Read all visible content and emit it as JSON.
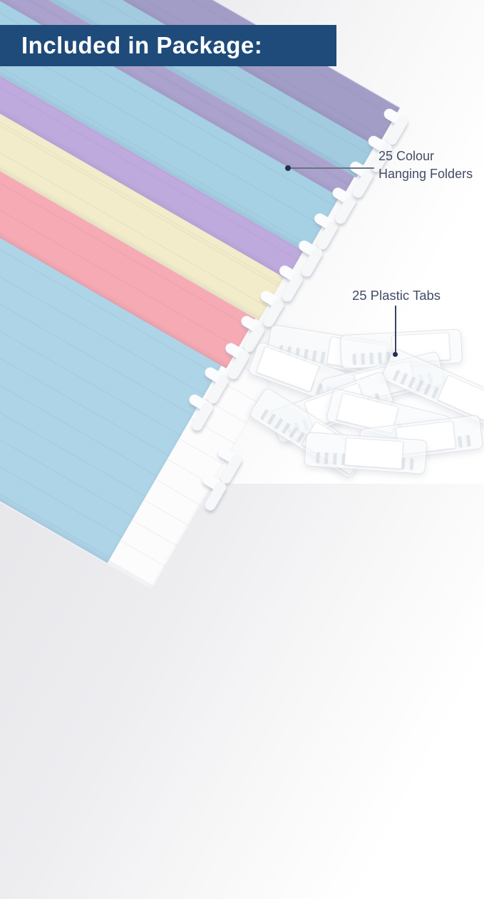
{
  "banner": {
    "title": "Included in Package:",
    "bg_color": "#1e4b79",
    "text_color": "#ffffff"
  },
  "callouts": {
    "folders": {
      "line1": "25 Colour",
      "line2": "Hanging Folders"
    },
    "tabs": {
      "label": "25 Plastic Tabs"
    },
    "label_color": "#414c64",
    "line_color": "#6a7386",
    "dot_color": "#232f4e"
  },
  "folders": {
    "stripe_colors": [
      {
        "name": "dusty-periwinkle",
        "hex": "#a29dc6"
      },
      {
        "name": "sky-blue",
        "hex": "#a2cbe0"
      },
      {
        "name": "gray-lilac",
        "hex": "#aba3cd"
      },
      {
        "name": "light-blue",
        "hex": "#a6d0e4"
      },
      {
        "name": "lilac",
        "hex": "#bfaadd"
      },
      {
        "name": "cream",
        "hex": "#f2eccb"
      },
      {
        "name": "pink",
        "hex": "#f6aab4"
      },
      {
        "name": "pale-blue",
        "hex": "#aed4e7"
      },
      {
        "name": "white",
        "hex": "#fcfcfd"
      }
    ],
    "hook_color": "#fbfcfd"
  }
}
